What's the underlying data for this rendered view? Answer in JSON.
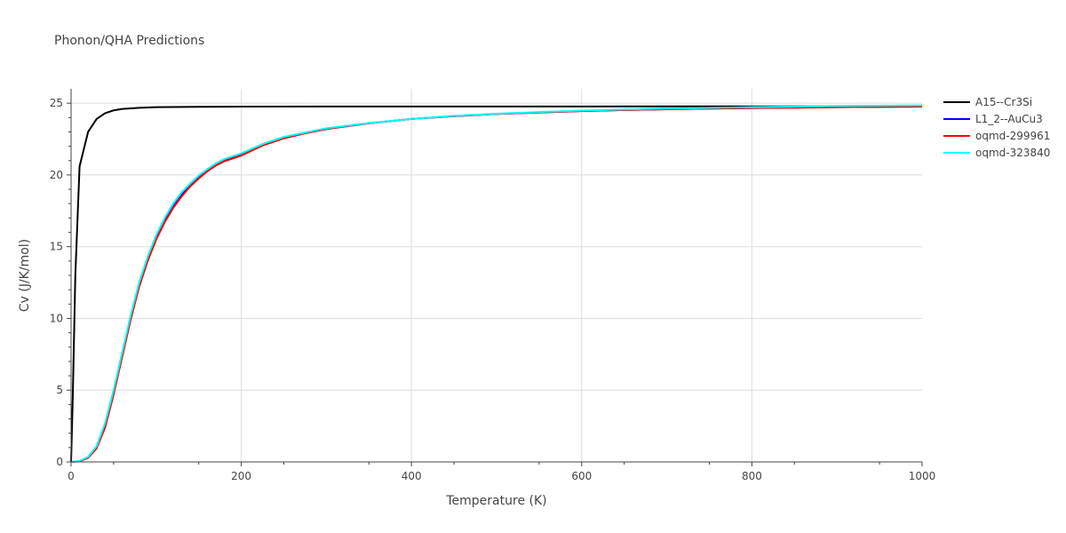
{
  "chart_data": {
    "type": "line",
    "title": "Phonon/QHA Predictions",
    "xlabel": "Temperature (K)",
    "ylabel": "Cv (J/K/mol)",
    "xlim": [
      0,
      1000
    ],
    "ylim": [
      0,
      26
    ],
    "xticks": [
      0,
      200,
      400,
      600,
      800,
      1000
    ],
    "yticks": [
      0,
      5,
      10,
      15,
      20,
      25
    ],
    "xtick_labels": [
      "0",
      "200",
      "400",
      "600",
      "800",
      "1000"
    ],
    "ytick_labels": [
      "0",
      "5",
      "10",
      "15",
      "20",
      "25"
    ],
    "grid": true,
    "legend_position": "top-right",
    "series": [
      {
        "name": "A15--Cr3Si",
        "color": "#000000",
        "x": [
          0,
          2,
          5,
          10,
          20,
          30,
          40,
          50,
          60,
          80,
          100,
          150,
          200,
          300,
          400,
          500,
          600,
          700,
          800,
          900,
          1000
        ],
        "y": [
          0,
          4.5,
          13.0,
          20.6,
          23.0,
          23.9,
          24.3,
          24.5,
          24.6,
          24.68,
          24.72,
          24.75,
          24.76,
          24.77,
          24.77,
          24.77,
          24.77,
          24.78,
          24.78,
          24.78,
          24.78
        ]
      },
      {
        "name": "L1_2--AuCu3",
        "color": "#0000ff",
        "x": [
          0,
          10,
          20,
          30,
          40,
          50,
          60,
          70,
          80,
          90,
          100,
          110,
          120,
          130,
          140,
          150,
          160,
          170,
          180,
          200,
          225,
          250,
          275,
          300,
          350,
          400,
          450,
          500,
          550,
          600,
          650,
          700,
          800,
          900,
          1000
        ],
        "y": [
          0,
          0.05,
          0.3,
          1.0,
          2.5,
          4.8,
          7.4,
          10.0,
          12.3,
          14.1,
          15.6,
          16.8,
          17.8,
          18.6,
          19.3,
          19.8,
          20.3,
          20.7,
          21.0,
          21.4,
          22.1,
          22.6,
          22.9,
          23.2,
          23.6,
          23.9,
          24.1,
          24.25,
          24.35,
          24.45,
          24.52,
          24.58,
          24.66,
          24.72,
          24.76
        ]
      },
      {
        "name": "oqmd-299961",
        "color": "#ff0000",
        "x": [
          0,
          10,
          20,
          30,
          40,
          50,
          60,
          70,
          80,
          90,
          100,
          110,
          120,
          130,
          140,
          150,
          160,
          170,
          180,
          200,
          225,
          250,
          275,
          300,
          350,
          400,
          450,
          500,
          550,
          600,
          650,
          700,
          800,
          900,
          1000
        ],
        "y": [
          0,
          0.05,
          0.28,
          0.95,
          2.4,
          4.7,
          7.3,
          9.9,
          12.2,
          14.0,
          15.5,
          16.7,
          17.7,
          18.5,
          19.2,
          19.75,
          20.25,
          20.65,
          20.95,
          21.35,
          22.05,
          22.55,
          22.9,
          23.2,
          23.6,
          23.9,
          24.1,
          24.25,
          24.35,
          24.45,
          24.52,
          24.58,
          24.66,
          24.72,
          24.76
        ]
      },
      {
        "name": "oqmd-323840",
        "color": "#00ffff",
        "x": [
          0,
          10,
          20,
          30,
          40,
          50,
          60,
          70,
          80,
          90,
          100,
          110,
          120,
          130,
          140,
          150,
          160,
          170,
          180,
          200,
          225,
          250,
          275,
          300,
          350,
          400,
          450,
          500,
          550,
          600,
          650,
          700,
          800,
          900,
          1000
        ],
        "y": [
          0,
          0.07,
          0.35,
          1.1,
          2.7,
          5.0,
          7.6,
          10.2,
          12.5,
          14.3,
          15.8,
          17.0,
          18.0,
          18.8,
          19.4,
          19.95,
          20.4,
          20.8,
          21.1,
          21.5,
          22.15,
          22.65,
          22.95,
          23.25,
          23.62,
          23.9,
          24.12,
          24.27,
          24.38,
          24.48,
          24.56,
          24.62,
          24.72,
          24.8,
          24.85
        ]
      }
    ]
  }
}
